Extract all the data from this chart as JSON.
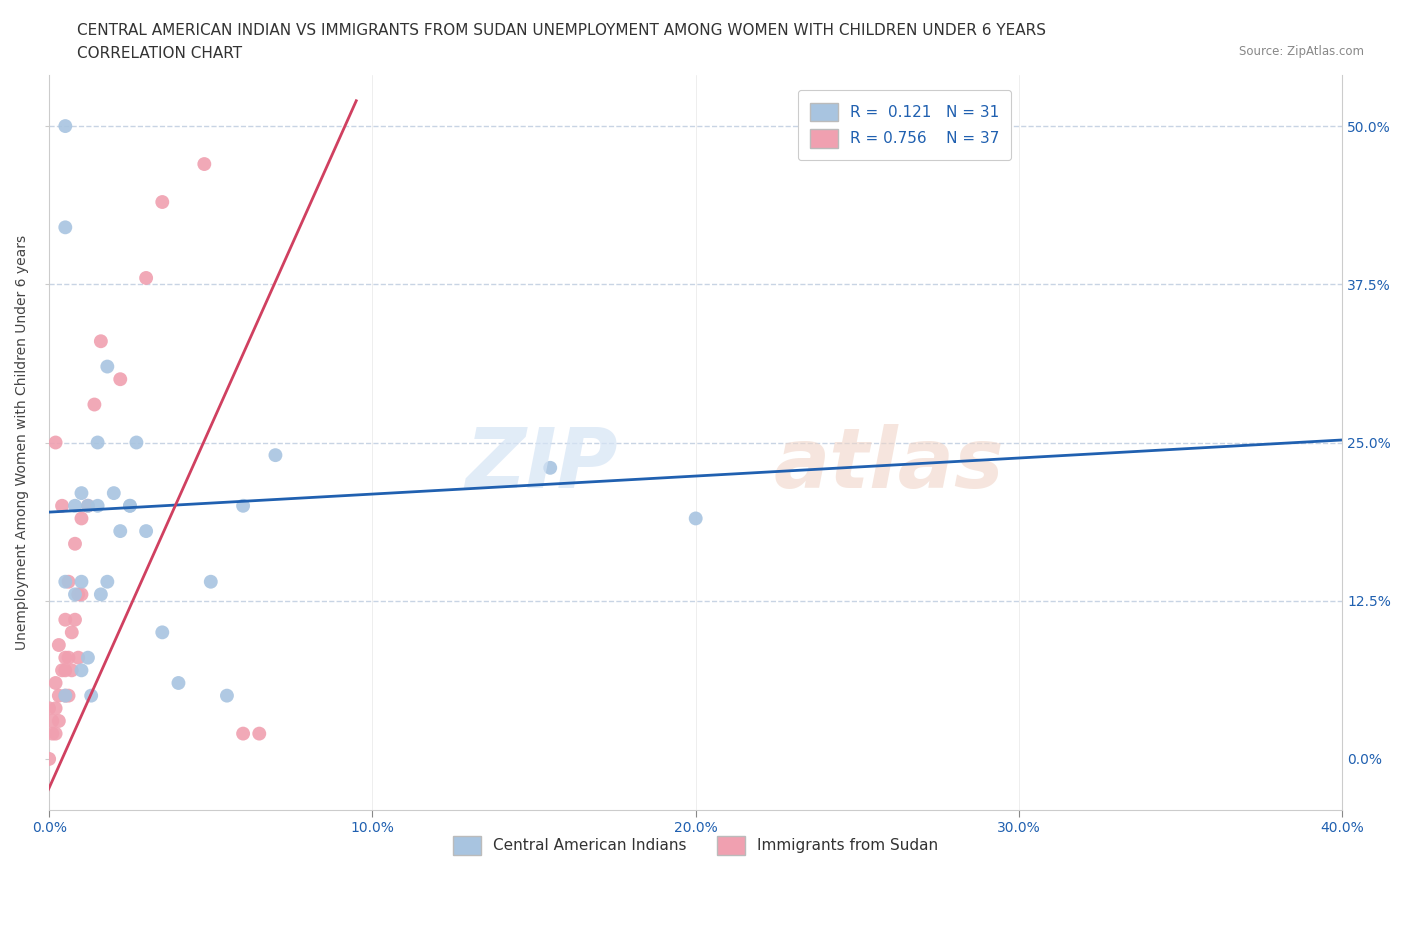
{
  "title_line1": "CENTRAL AMERICAN INDIAN VS IMMIGRANTS FROM SUDAN UNEMPLOYMENT AMONG WOMEN WITH CHILDREN UNDER 6 YEARS",
  "title_line2": "CORRELATION CHART",
  "source": "Source: ZipAtlas.com",
  "xlabel_ticks": [
    "0.0%",
    "10.0%",
    "20.0%",
    "30.0%",
    "40.0%"
  ],
  "ylabel_ticks": [
    "0.0%",
    "12.5%",
    "25.0%",
    "37.5%",
    "50.0%"
  ],
  "xlim": [
    0.0,
    0.4
  ],
  "ylim": [
    -0.04,
    0.54
  ],
  "ylabel": "Unemployment Among Women with Children Under 6 years",
  "legend_blue_label": "Central American Indians",
  "legend_pink_label": "Immigrants from Sudan",
  "legend_r_blue": "R =  0.121   N = 31",
  "legend_r_pink": "R = 0.756    N = 37",
  "blue_color": "#a8c4e0",
  "pink_color": "#f0a0b0",
  "blue_line_color": "#2060b0",
  "pink_line_color": "#d04060",
  "blue_scatter_x": [
    0.005,
    0.005,
    0.005,
    0.005,
    0.008,
    0.008,
    0.01,
    0.01,
    0.01,
    0.012,
    0.012,
    0.013,
    0.015,
    0.015,
    0.016,
    0.018,
    0.018,
    0.02,
    0.022,
    0.025,
    0.025,
    0.027,
    0.03,
    0.035,
    0.04,
    0.05,
    0.055,
    0.06,
    0.07,
    0.155,
    0.2
  ],
  "blue_scatter_y": [
    0.5,
    0.42,
    0.14,
    0.05,
    0.2,
    0.13,
    0.21,
    0.14,
    0.07,
    0.2,
    0.08,
    0.05,
    0.25,
    0.2,
    0.13,
    0.31,
    0.14,
    0.21,
    0.18,
    0.2,
    0.2,
    0.25,
    0.18,
    0.1,
    0.06,
    0.14,
    0.05,
    0.2,
    0.24,
    0.23,
    0.19
  ],
  "pink_scatter_x": [
    0.0,
    0.0,
    0.001,
    0.001,
    0.002,
    0.002,
    0.002,
    0.002,
    0.003,
    0.003,
    0.003,
    0.004,
    0.004,
    0.005,
    0.005,
    0.005,
    0.005,
    0.006,
    0.006,
    0.006,
    0.007,
    0.007,
    0.008,
    0.008,
    0.009,
    0.009,
    0.01,
    0.01,
    0.012,
    0.014,
    0.016,
    0.022,
    0.03,
    0.035,
    0.048,
    0.06,
    0.065
  ],
  "pink_scatter_y": [
    0.0,
    0.04,
    0.02,
    0.03,
    0.02,
    0.04,
    0.06,
    0.25,
    0.03,
    0.05,
    0.09,
    0.07,
    0.2,
    0.05,
    0.07,
    0.08,
    0.11,
    0.05,
    0.08,
    0.14,
    0.07,
    0.1,
    0.11,
    0.17,
    0.08,
    0.13,
    0.13,
    0.19,
    0.2,
    0.28,
    0.33,
    0.3,
    0.38,
    0.44,
    0.47,
    0.02,
    0.02
  ],
  "blue_line_x": [
    0.0,
    0.4
  ],
  "blue_line_y": [
    0.195,
    0.252
  ],
  "pink_line_x": [
    -0.003,
    0.095
  ],
  "pink_line_y": [
    -0.04,
    0.52
  ],
  "background_color": "#ffffff",
  "grid_color": "#c8d4e4",
  "title_fontsize": 11,
  "axis_label_fontsize": 10,
  "tick_fontsize": 10,
  "legend_fontsize": 11,
  "scatter_size": 100
}
